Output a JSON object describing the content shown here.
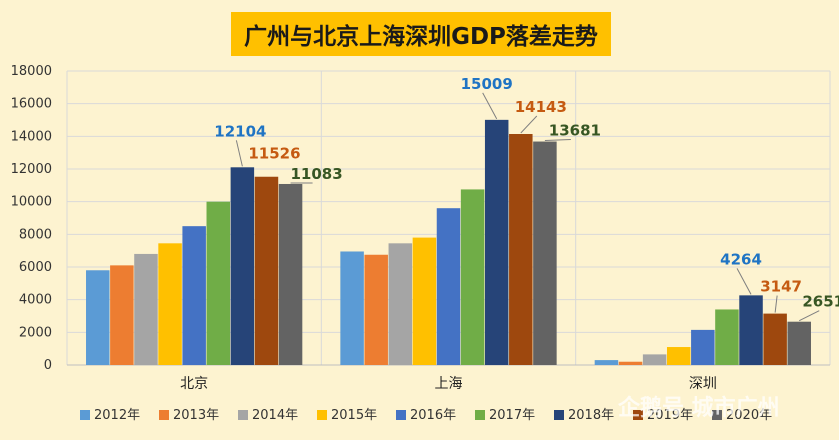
{
  "chart_data": {
    "type": "bar",
    "title": "广州与北京上海深圳GDP落差走势",
    "categories": [
      "北京",
      "上海",
      "深圳"
    ],
    "series": [
      {
        "name": "2012年",
        "color": "#5b9bd5",
        "values": [
          5800,
          6950,
          300
        ]
      },
      {
        "name": "2013年",
        "color": "#ed7d31",
        "values": [
          6100,
          6750,
          200
        ]
      },
      {
        "name": "2014年",
        "color": "#a5a5a5",
        "values": [
          6800,
          7450,
          650
        ]
      },
      {
        "name": "2015年",
        "color": "#ffc000",
        "values": [
          7450,
          7800,
          1100
        ]
      },
      {
        "name": "2016年",
        "color": "#4472c4",
        "values": [
          8500,
          9600,
          2150
        ]
      },
      {
        "name": "2017年",
        "color": "#70ad47",
        "values": [
          10000,
          10750,
          3400
        ]
      },
      {
        "name": "2018年",
        "color": "#264478",
        "values": [
          12104,
          15009,
          4264
        ]
      },
      {
        "name": "2019年",
        "color": "#9e480e",
        "values": [
          11526,
          14143,
          3147
        ]
      },
      {
        "name": "2020年",
        "color": "#636363",
        "values": [
          11083,
          13681,
          2651
        ]
      }
    ],
    "data_labels": [
      {
        "category": "北京",
        "series": "2018年",
        "text": "12104",
        "color": "#1f74c4"
      },
      {
        "category": "北京",
        "series": "2019年",
        "text": "11526",
        "color": "#c55a11"
      },
      {
        "category": "北京",
        "series": "2020年",
        "text": "11083",
        "color": "#375623"
      },
      {
        "category": "上海",
        "series": "2018年",
        "text": "15009",
        "color": "#1f74c4"
      },
      {
        "category": "上海",
        "series": "2019年",
        "text": "14143",
        "color": "#c55a11"
      },
      {
        "category": "上海",
        "series": "2020年",
        "text": "13681",
        "color": "#375623"
      },
      {
        "category": "深圳",
        "series": "2018年",
        "text": "4264",
        "color": "#1f74c4"
      },
      {
        "category": "深圳",
        "series": "2019年",
        "text": "3147",
        "color": "#c55a11"
      },
      {
        "category": "深圳",
        "series": "2020年",
        "text": "2651",
        "color": "#375623"
      }
    ],
    "ylim": [
      0,
      18000
    ],
    "yticks": [
      0,
      2000,
      4000,
      6000,
      8000,
      10000,
      12000,
      14000,
      16000,
      18000
    ],
    "grid": true,
    "legend_position": "bottom"
  },
  "watermark": "企鹅号 城市广州"
}
